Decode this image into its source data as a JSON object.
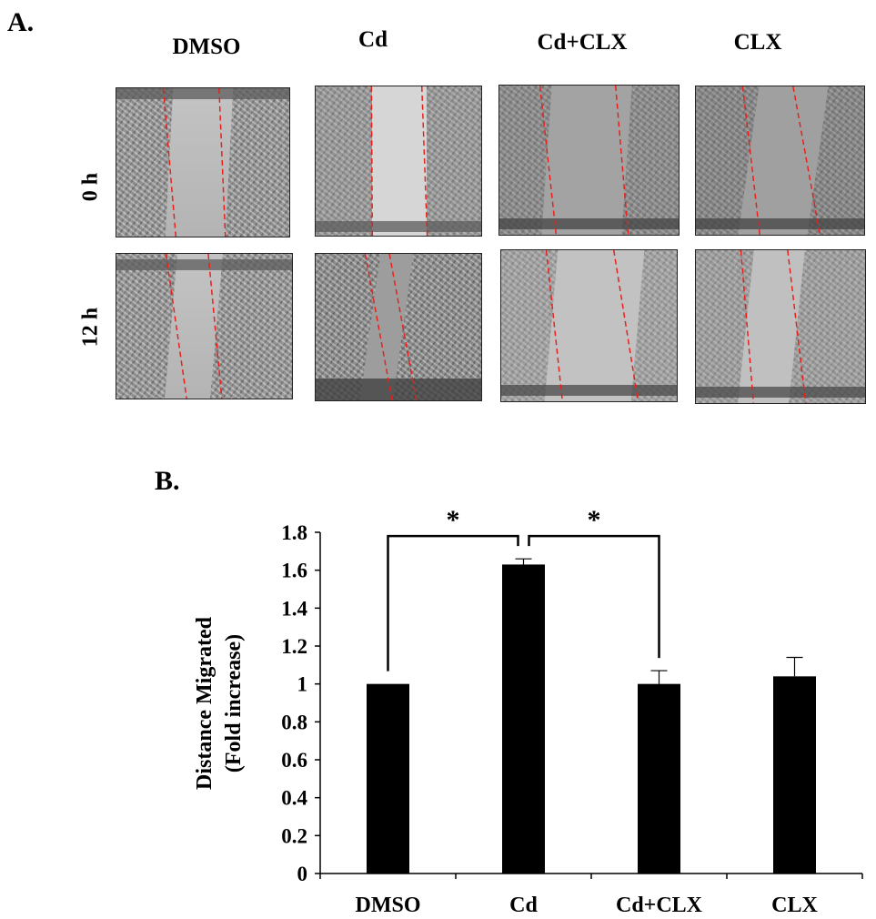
{
  "panel_a": {
    "letter": "A.",
    "columns": [
      "DMSO",
      "Cd",
      "Cd+CLX",
      "CLX"
    ],
    "rows": [
      "0 h",
      "12 h"
    ]
  },
  "panel_b": {
    "letter": "B."
  },
  "colors": {
    "bar": "#000000",
    "guide_line": "#e8201c",
    "background": "#ffffff"
  },
  "chart_data": {
    "type": "bar",
    "title": "",
    "ylabel_lines": [
      "Distance Migrated",
      "(Fold increase)"
    ],
    "xlabel": "",
    "categories": [
      "DMSO",
      "Cd",
      "Cd+CLX",
      "CLX"
    ],
    "values": [
      1.0,
      1.63,
      1.0,
      1.04
    ],
    "errors": [
      0.0,
      0.03,
      0.07,
      0.1
    ],
    "ylim": [
      0,
      1.8
    ],
    "yticks": [
      "0",
      "0.2",
      "0.4",
      "0.6",
      "0.8",
      "1",
      "1.2",
      "1.4",
      "1.6",
      "1.8"
    ],
    "grid": false,
    "legend": "none",
    "significance": [
      {
        "from": "DMSO",
        "to": "Cd",
        "label": "*"
      },
      {
        "from": "Cd",
        "to": "Cd+CLX",
        "label": "*"
      }
    ]
  }
}
